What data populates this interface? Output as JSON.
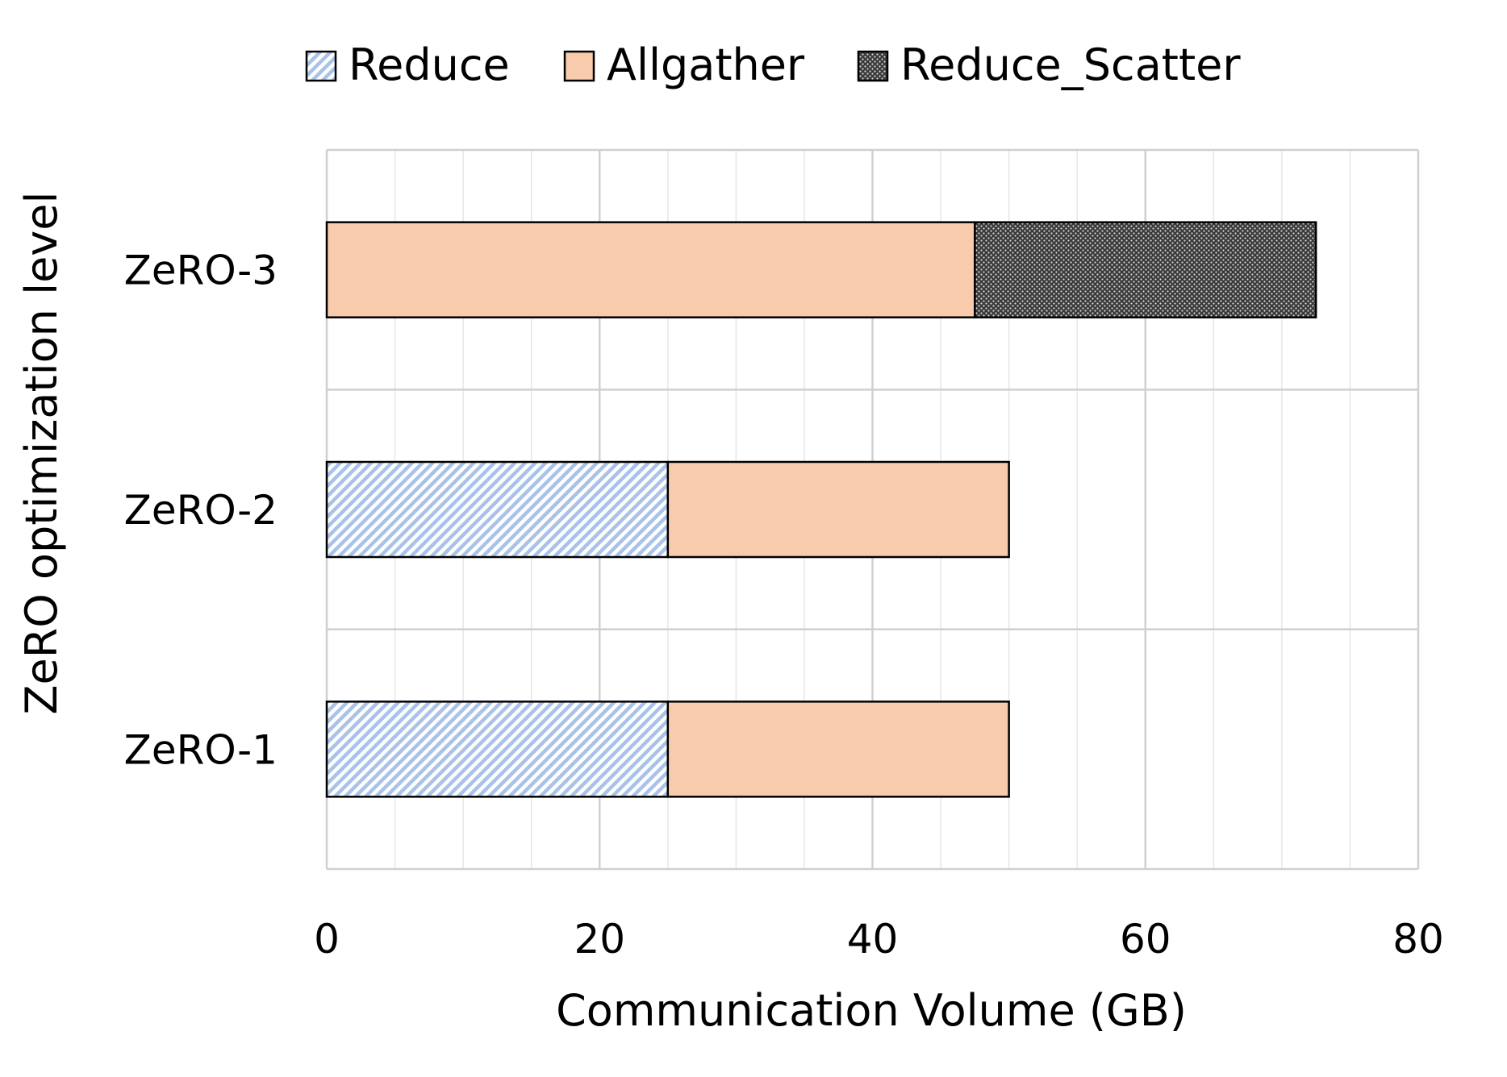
{
  "chart_data": {
    "type": "bar",
    "orientation": "horizontal",
    "stacked": true,
    "categories": [
      "ZeRO-3",
      "ZeRO-2",
      "ZeRO-1"
    ],
    "series": [
      {
        "name": "Reduce",
        "values": [
          0,
          25,
          25
        ],
        "color": "#a9c2e8",
        "pattern": "diagonal-hatch"
      },
      {
        "name": "Allgather",
        "values": [
          47.5,
          25,
          25
        ],
        "color": "#f8cbad",
        "pattern": "solid"
      },
      {
        "name": "Reduce_Scatter",
        "values": [
          25,
          0,
          0
        ],
        "color": "#4d4d4d",
        "pattern": "dotted-dark"
      }
    ],
    "xlabel": "Communication Volume (GB)",
    "ylabel": "ZeRO optimization level",
    "xlim": [
      0,
      80
    ],
    "xticks": [
      "0",
      "20",
      "40",
      "60",
      "80"
    ],
    "grid": true,
    "legend_position": "top"
  }
}
